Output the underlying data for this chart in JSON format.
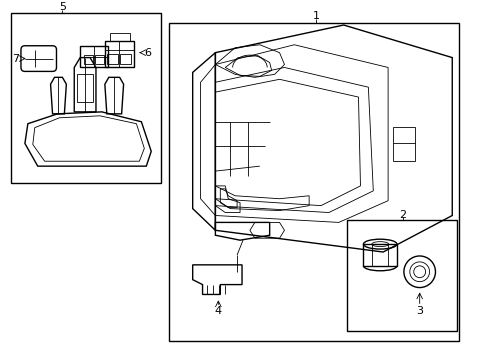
{
  "bg_color": "#ffffff",
  "line_color": "#000000",
  "lw": 1.0,
  "tlw": 0.6,
  "label_fontsize": 8,
  "fig_width": 4.89,
  "fig_height": 3.6,
  "dpi": 100
}
